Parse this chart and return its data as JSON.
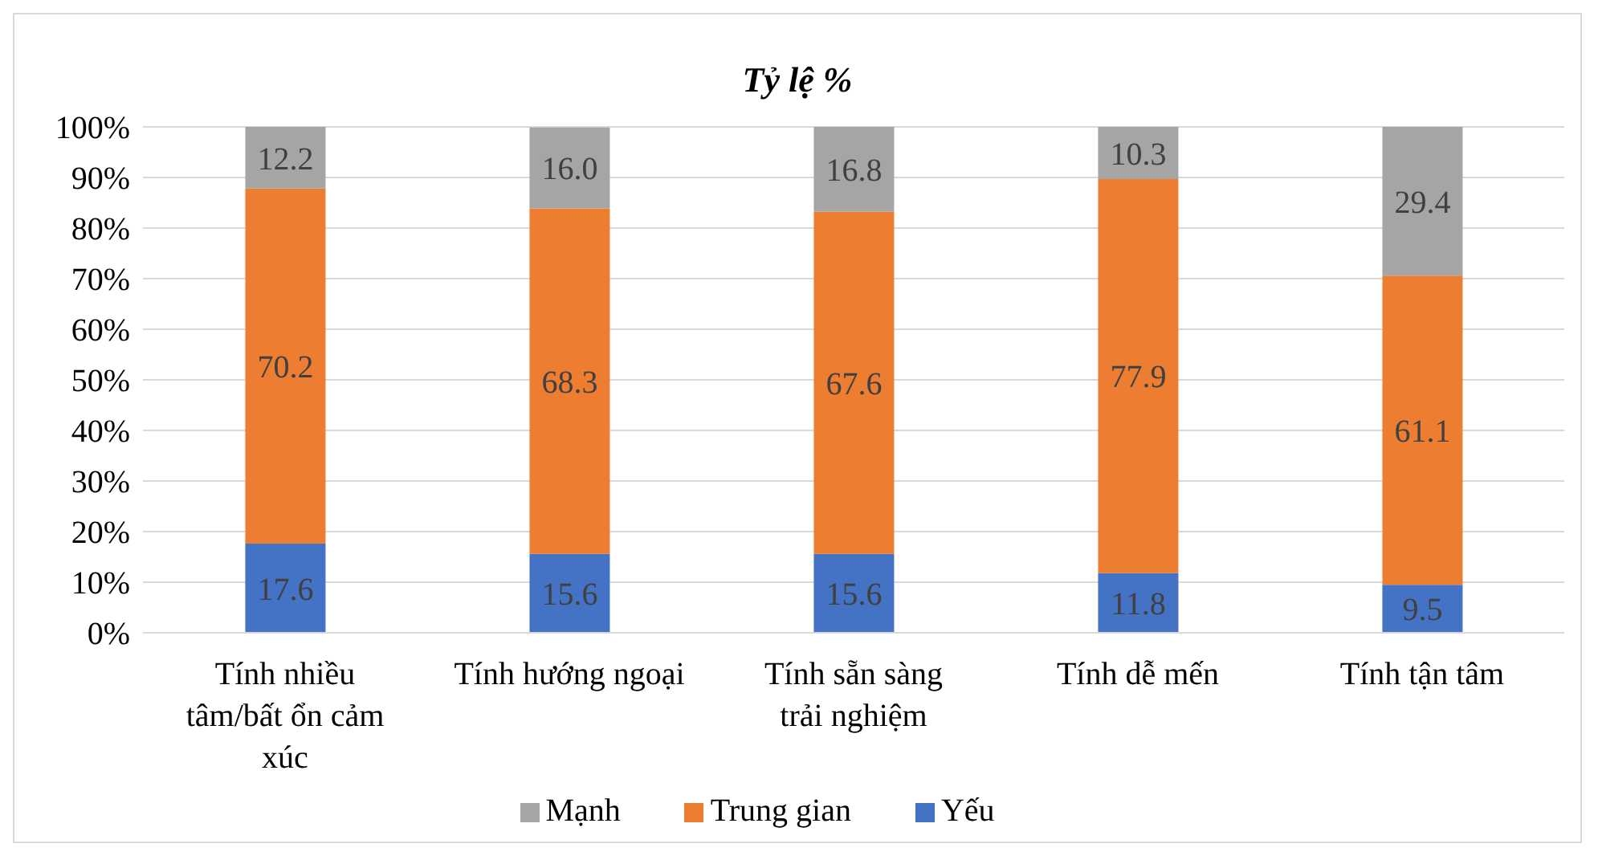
{
  "chart_data": {
    "type": "bar",
    "title": "Tỷ lệ %",
    "stacked": true,
    "categories": [
      "Tính nhiều tâm/bất ổn cảm xúc",
      "Tính hướng ngoại",
      "Tính sẵn sàng trải nghiệm",
      "Tính dễ mến",
      "Tính tận tâm"
    ],
    "series": [
      {
        "name": "Yếu",
        "color": "#4472c4",
        "values": [
          17.6,
          15.6,
          15.6,
          11.8,
          9.5
        ],
        "value_labels": [
          "17.6",
          "15.6",
          "15.6",
          "11.8",
          "9.5"
        ]
      },
      {
        "name": "Trung gian",
        "color": "#ed7d31",
        "values": [
          70.2,
          68.3,
          67.6,
          77.9,
          61.1
        ],
        "value_labels": [
          "70.2",
          "68.3",
          "67.6",
          "77.9",
          "61.1"
        ]
      },
      {
        "name": "Mạnh",
        "color": "#a5a5a5",
        "values": [
          12.2,
          16.0,
          16.8,
          10.3,
          29.4
        ],
        "value_labels": [
          "12.2",
          "16.0",
          "16.8",
          "10.3",
          "29.4"
        ]
      }
    ],
    "ylim": [
      0,
      100
    ],
    "yticks": [
      {
        "value": 0,
        "label": "0%"
      },
      {
        "value": 10,
        "label": "10%"
      },
      {
        "value": 20,
        "label": "20%"
      },
      {
        "value": 30,
        "label": "30%"
      },
      {
        "value": 40,
        "label": "40%"
      },
      {
        "value": 50,
        "label": "50%"
      },
      {
        "value": 60,
        "label": "60%"
      },
      {
        "value": 70,
        "label": "70%"
      },
      {
        "value": 80,
        "label": "80%"
      },
      {
        "value": 90,
        "label": "90%"
      },
      {
        "value": 100,
        "label": "100%"
      }
    ],
    "grid": "y",
    "legend": "bottom"
  }
}
